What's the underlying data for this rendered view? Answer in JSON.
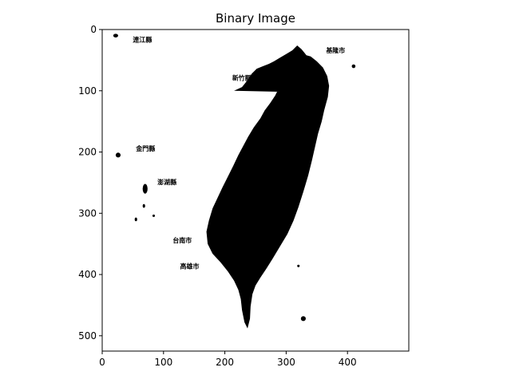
{
  "chart_data": {
    "type": "heatmap",
    "title": "Binary Image",
    "xlabel": "",
    "ylabel": "",
    "xlim": [
      0,
      500
    ],
    "ylim": [
      525,
      0
    ],
    "x_ticks": [
      0,
      100,
      200,
      300,
      400
    ],
    "y_ticks": [
      0,
      100,
      200,
      300,
      400,
      500
    ],
    "colors": {
      "foreground": "#000000",
      "background": "#ffffff"
    },
    "place_labels": [
      {
        "text": "連江縣",
        "x": 50,
        "y": 20
      },
      {
        "text": "基隆市",
        "x": 365,
        "y": 38
      },
      {
        "text": "新竹縣",
        "x": 212,
        "y": 83
      },
      {
        "text": "金門縣",
        "x": 55,
        "y": 198
      },
      {
        "text": "澎湖縣",
        "x": 90,
        "y": 253
      },
      {
        "text": "台南市",
        "x": 115,
        "y": 348
      },
      {
        "text": "高雄市",
        "x": 127,
        "y": 390
      }
    ]
  }
}
